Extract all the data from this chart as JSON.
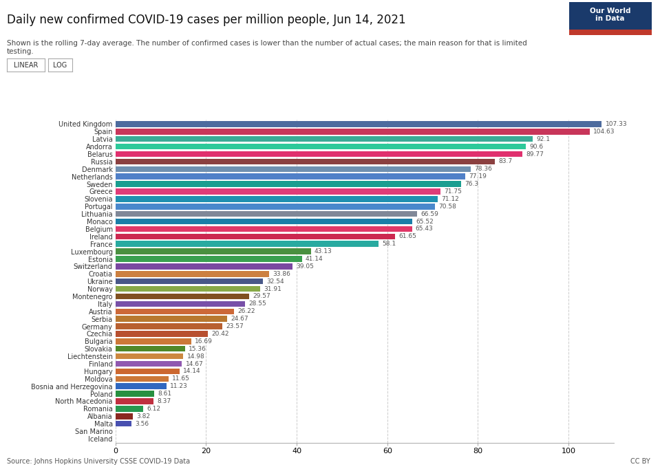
{
  "title": "Daily new confirmed COVID-19 cases per million people, Jun 14, 2021",
  "subtitle": "Shown is the rolling 7-day average. The number of confirmed cases is lower than the number of actual cases; the main reason for that is limited\ntesting.",
  "source": "Source: Johns Hopkins University CSSE COVID-19 Data",
  "watermark": "CC BY",
  "countries": [
    "United Kingdom",
    "Spain",
    "Latvia",
    "Andorra",
    "Belarus",
    "Russia",
    "Denmark",
    "Netherlands",
    "Sweden",
    "Greece",
    "Slovenia",
    "Portugal",
    "Lithuania",
    "Monaco",
    "Belgium",
    "Ireland",
    "France",
    "Luxembourg",
    "Estonia",
    "Switzerland",
    "Croatia",
    "Ukraine",
    "Norway",
    "Montenegro",
    "Italy",
    "Austria",
    "Serbia",
    "Germany",
    "Czechia",
    "Bulgaria",
    "Slovakia",
    "Liechtenstein",
    "Finland",
    "Hungary",
    "Moldova",
    "Bosnia and Herzegovina",
    "Poland",
    "North Macedonia",
    "Romania",
    "Albania",
    "Malta",
    "San Marino",
    "Iceland"
  ],
  "values": [
    107.33,
    104.63,
    92.1,
    90.6,
    89.77,
    83.7,
    78.36,
    77.19,
    76.3,
    71.75,
    71.12,
    70.58,
    66.59,
    65.52,
    65.43,
    61.65,
    58.1,
    43.13,
    41.14,
    39.05,
    33.86,
    32.54,
    31.91,
    29.57,
    28.55,
    26.22,
    24.67,
    23.57,
    20.42,
    16.69,
    15.36,
    14.98,
    14.67,
    14.14,
    11.65,
    11.23,
    8.61,
    8.37,
    6.12,
    3.82,
    3.56,
    0,
    0
  ],
  "colors": [
    "#4d6b9e",
    "#c8365a",
    "#3aab96",
    "#2dc99a",
    "#e0306e",
    "#8b4040",
    "#7090b0",
    "#5080c8",
    "#1a9e90",
    "#e03c78",
    "#2090b0",
    "#4a88cc",
    "#808898",
    "#1a7ea8",
    "#e03868",
    "#cc2850",
    "#28aaA0",
    "#4a9040",
    "#3aA050",
    "#7a48a0",
    "#cc8040",
    "#485888",
    "#88aa48",
    "#805020",
    "#7850a8",
    "#cc6838",
    "#b87830",
    "#b86030",
    "#b85030",
    "#cc7838",
    "#508828",
    "#cc8840",
    "#9058b0",
    "#cc6830",
    "#cc7838",
    "#3068c0",
    "#289040",
    "#c03040",
    "#289850",
    "#8a2820",
    "#4850b0",
    "#b0b0b0",
    "#b0b0b0"
  ],
  "xlim": [
    0,
    110
  ],
  "xticks": [
    0,
    20,
    40,
    60,
    80,
    100
  ],
  "background_color": "#ffffff",
  "bar_height": 0.78
}
